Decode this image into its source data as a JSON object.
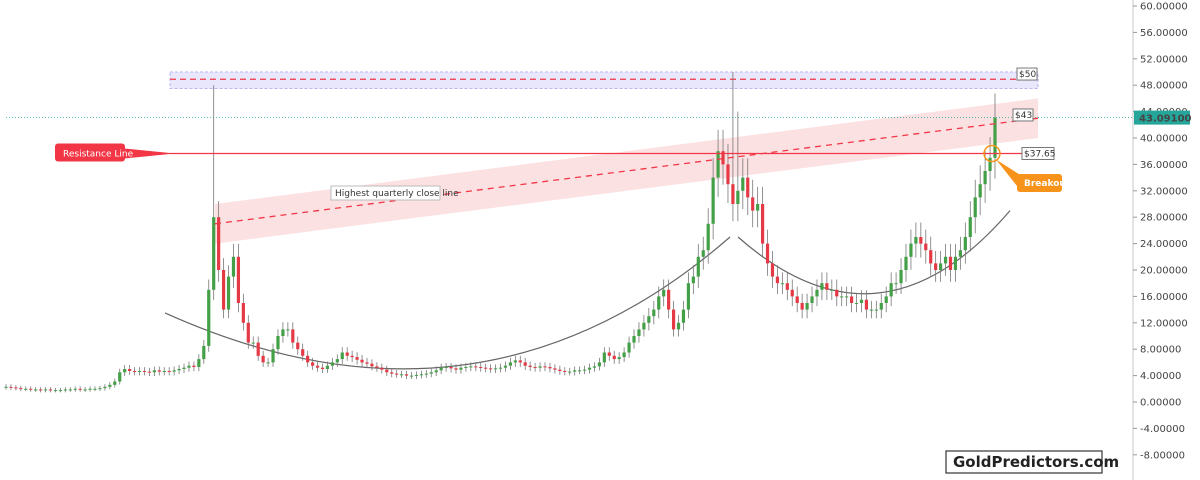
{
  "watermark": "GoldPredictors.com",
  "colors": {
    "up": "#43a047",
    "down": "#e53945",
    "resistance": "#f23645",
    "trend": "#f23645",
    "trend_band": "#fbd7d9",
    "top_zone": "#e8e7fb",
    "curve": "#666666",
    "breakout": "#f7931a",
    "price_tag": "#26a69a"
  },
  "chart_data": {
    "type": "candlestick",
    "title": "",
    "xlabel": "",
    "ylabel": "",
    "ylim": [
      -10,
      60
    ],
    "yticks": [
      "-8.00000",
      "-4.00000",
      "0.00000",
      "4.00000",
      "8.00000",
      "12.00000",
      "16.00000",
      "20.00000",
      "24.00000",
      "28.00000",
      "32.00000",
      "36.00000",
      "40.00000",
      "44.00000",
      "48.00000",
      "52.00000",
      "56.00000",
      "60.00000"
    ],
    "grid": false,
    "last_price": {
      "value": 43.091,
      "label": "43.09100"
    },
    "closes": [
      2.3,
      2.2,
      2.1,
      2.0,
      2.0,
      1.9,
      1.9,
      1.8,
      1.9,
      1.8,
      1.8,
      1.8,
      1.9,
      1.9,
      2.0,
      1.9,
      1.9,
      2.0,
      2.0,
      2.1,
      2.3,
      2.6,
      3.1,
      4.5,
      5.0,
      4.7,
      4.6,
      4.7,
      4.6,
      4.5,
      4.8,
      4.6,
      4.7,
      4.6,
      4.8,
      5.0,
      5.2,
      5.5,
      5.3,
      6.5,
      8.5,
      17,
      28,
      20,
      14,
      19,
      22,
      15,
      12,
      9,
      9,
      7,
      6,
      6,
      8,
      10,
      11,
      11,
      9,
      8,
      7,
      6,
      5.5,
      5.2,
      5.0,
      5.5,
      6.0,
      6.5,
      7.5,
      7.0,
      6.8,
      6.4,
      6.0,
      5.8,
      5.4,
      5.2,
      4.9,
      4.5,
      4.3,
      4.2,
      4.2,
      4.0,
      4.0,
      4.1,
      4.2,
      4.3,
      4.5,
      4.8,
      5.2,
      5.3,
      5.1,
      4.9,
      5.2,
      5.3,
      5.4,
      5.3,
      5.2,
      5.1,
      5.0,
      5.1,
      5.2,
      5.5,
      6.0,
      6.3,
      6.0,
      5.5,
      5.3,
      5.2,
      5.4,
      5.3,
      5.1,
      4.9,
      4.7,
      4.6,
      4.6,
      4.8,
      4.8,
      4.9,
      5.2,
      5.4,
      6.0,
      7.5,
      7.0,
      6.5,
      6.8,
      7.5,
      9,
      10,
      11,
      12,
      13,
      14,
      16,
      17,
      14,
      11,
      12,
      14,
      18,
      19,
      22,
      23,
      27,
      34,
      38,
      36,
      33,
      30,
      32,
      34,
      31,
      29,
      30,
      24,
      21,
      19,
      18,
      18,
      17,
      16,
      15,
      14,
      15,
      16,
      17,
      18,
      17,
      17,
      16,
      16,
      16,
      15,
      15,
      15.5,
      14,
      14,
      14,
      15,
      16,
      18,
      18,
      20,
      22,
      24,
      25,
      24,
      23,
      21,
      20,
      21,
      22,
      20,
      22,
      23,
      25,
      28,
      31,
      33,
      35,
      37,
      43.09
    ]
  },
  "annotations": {
    "resistance": {
      "label": "Resistance Line",
      "value": 37.65,
      "price_label": "$37.65"
    },
    "trendline": {
      "label": "Highest quarterly close line",
      "end_label": "$43",
      "start_value": 27,
      "end_value": 43
    },
    "top_zone": {
      "label": "$50",
      "low": 47.5,
      "high": 50
    },
    "breakout": {
      "label": "Breakout"
    }
  }
}
